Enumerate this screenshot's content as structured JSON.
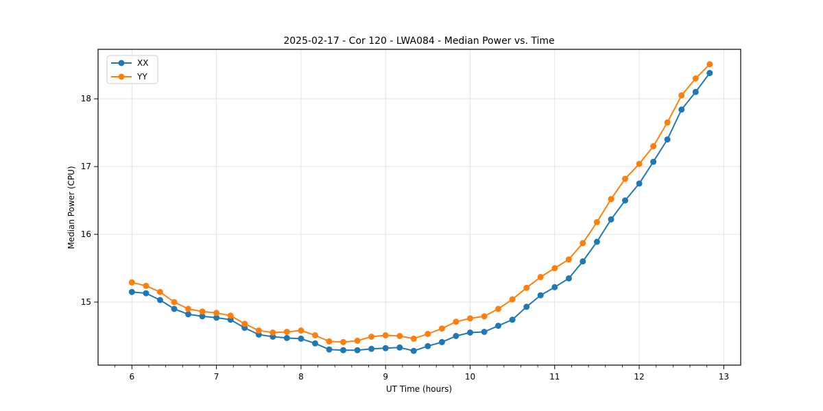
{
  "chart_data": {
    "type": "line",
    "title": "2025-02-17 - Cor 120 - LWA084 - Median Power vs. Time",
    "xlabel": "UT Time (hours)",
    "ylabel": "Median Power (CPU)",
    "xlim": [
      5.6,
      13.2
    ],
    "ylim": [
      14.07,
      18.73
    ],
    "x_ticks": [
      6,
      7,
      8,
      9,
      10,
      11,
      12,
      13
    ],
    "y_ticks": [
      15,
      16,
      17,
      18
    ],
    "x_minor_step": 0.2,
    "grid": true,
    "grid_color": "#e3e3e3",
    "background": "#ffffff",
    "legend": {
      "position": "upper-left",
      "entries": [
        "XX",
        "YY"
      ]
    },
    "x": [
      6.0,
      6.167,
      6.333,
      6.5,
      6.667,
      6.833,
      7.0,
      7.167,
      7.333,
      7.5,
      7.667,
      7.833,
      8.0,
      8.167,
      8.333,
      8.5,
      8.667,
      8.833,
      9.0,
      9.167,
      9.333,
      9.5,
      9.667,
      9.833,
      10.0,
      10.167,
      10.333,
      10.5,
      10.667,
      10.833,
      11.0,
      11.167,
      11.333,
      11.5,
      11.667,
      11.833,
      12.0,
      12.167,
      12.333,
      12.5,
      12.667,
      12.833
    ],
    "series": [
      {
        "name": "XX",
        "color": "#1f77b4",
        "values": [
          15.15,
          15.13,
          15.03,
          14.9,
          14.82,
          14.79,
          14.77,
          14.74,
          14.62,
          14.52,
          14.49,
          14.47,
          14.46,
          14.39,
          14.3,
          14.29,
          14.29,
          14.31,
          14.32,
          14.33,
          14.28,
          14.35,
          14.41,
          14.5,
          14.55,
          14.56,
          14.65,
          14.74,
          14.93,
          15.1,
          15.22,
          15.35,
          15.6,
          15.89,
          16.22,
          16.5,
          16.75,
          17.07,
          17.4,
          17.84,
          18.1,
          18.38
        ]
      },
      {
        "name": "YY",
        "color": "#ff7f0e",
        "values": [
          15.29,
          15.24,
          15.15,
          15.0,
          14.9,
          14.86,
          14.84,
          14.8,
          14.68,
          14.58,
          14.55,
          14.56,
          14.58,
          14.51,
          14.42,
          14.41,
          14.43,
          14.49,
          14.51,
          14.5,
          14.46,
          14.53,
          14.61,
          14.71,
          14.76,
          14.79,
          14.9,
          15.04,
          15.21,
          15.37,
          15.5,
          15.63,
          15.87,
          16.18,
          16.52,
          16.82,
          17.04,
          17.3,
          17.65,
          18.05,
          18.3,
          18.51
        ]
      }
    ]
  }
}
